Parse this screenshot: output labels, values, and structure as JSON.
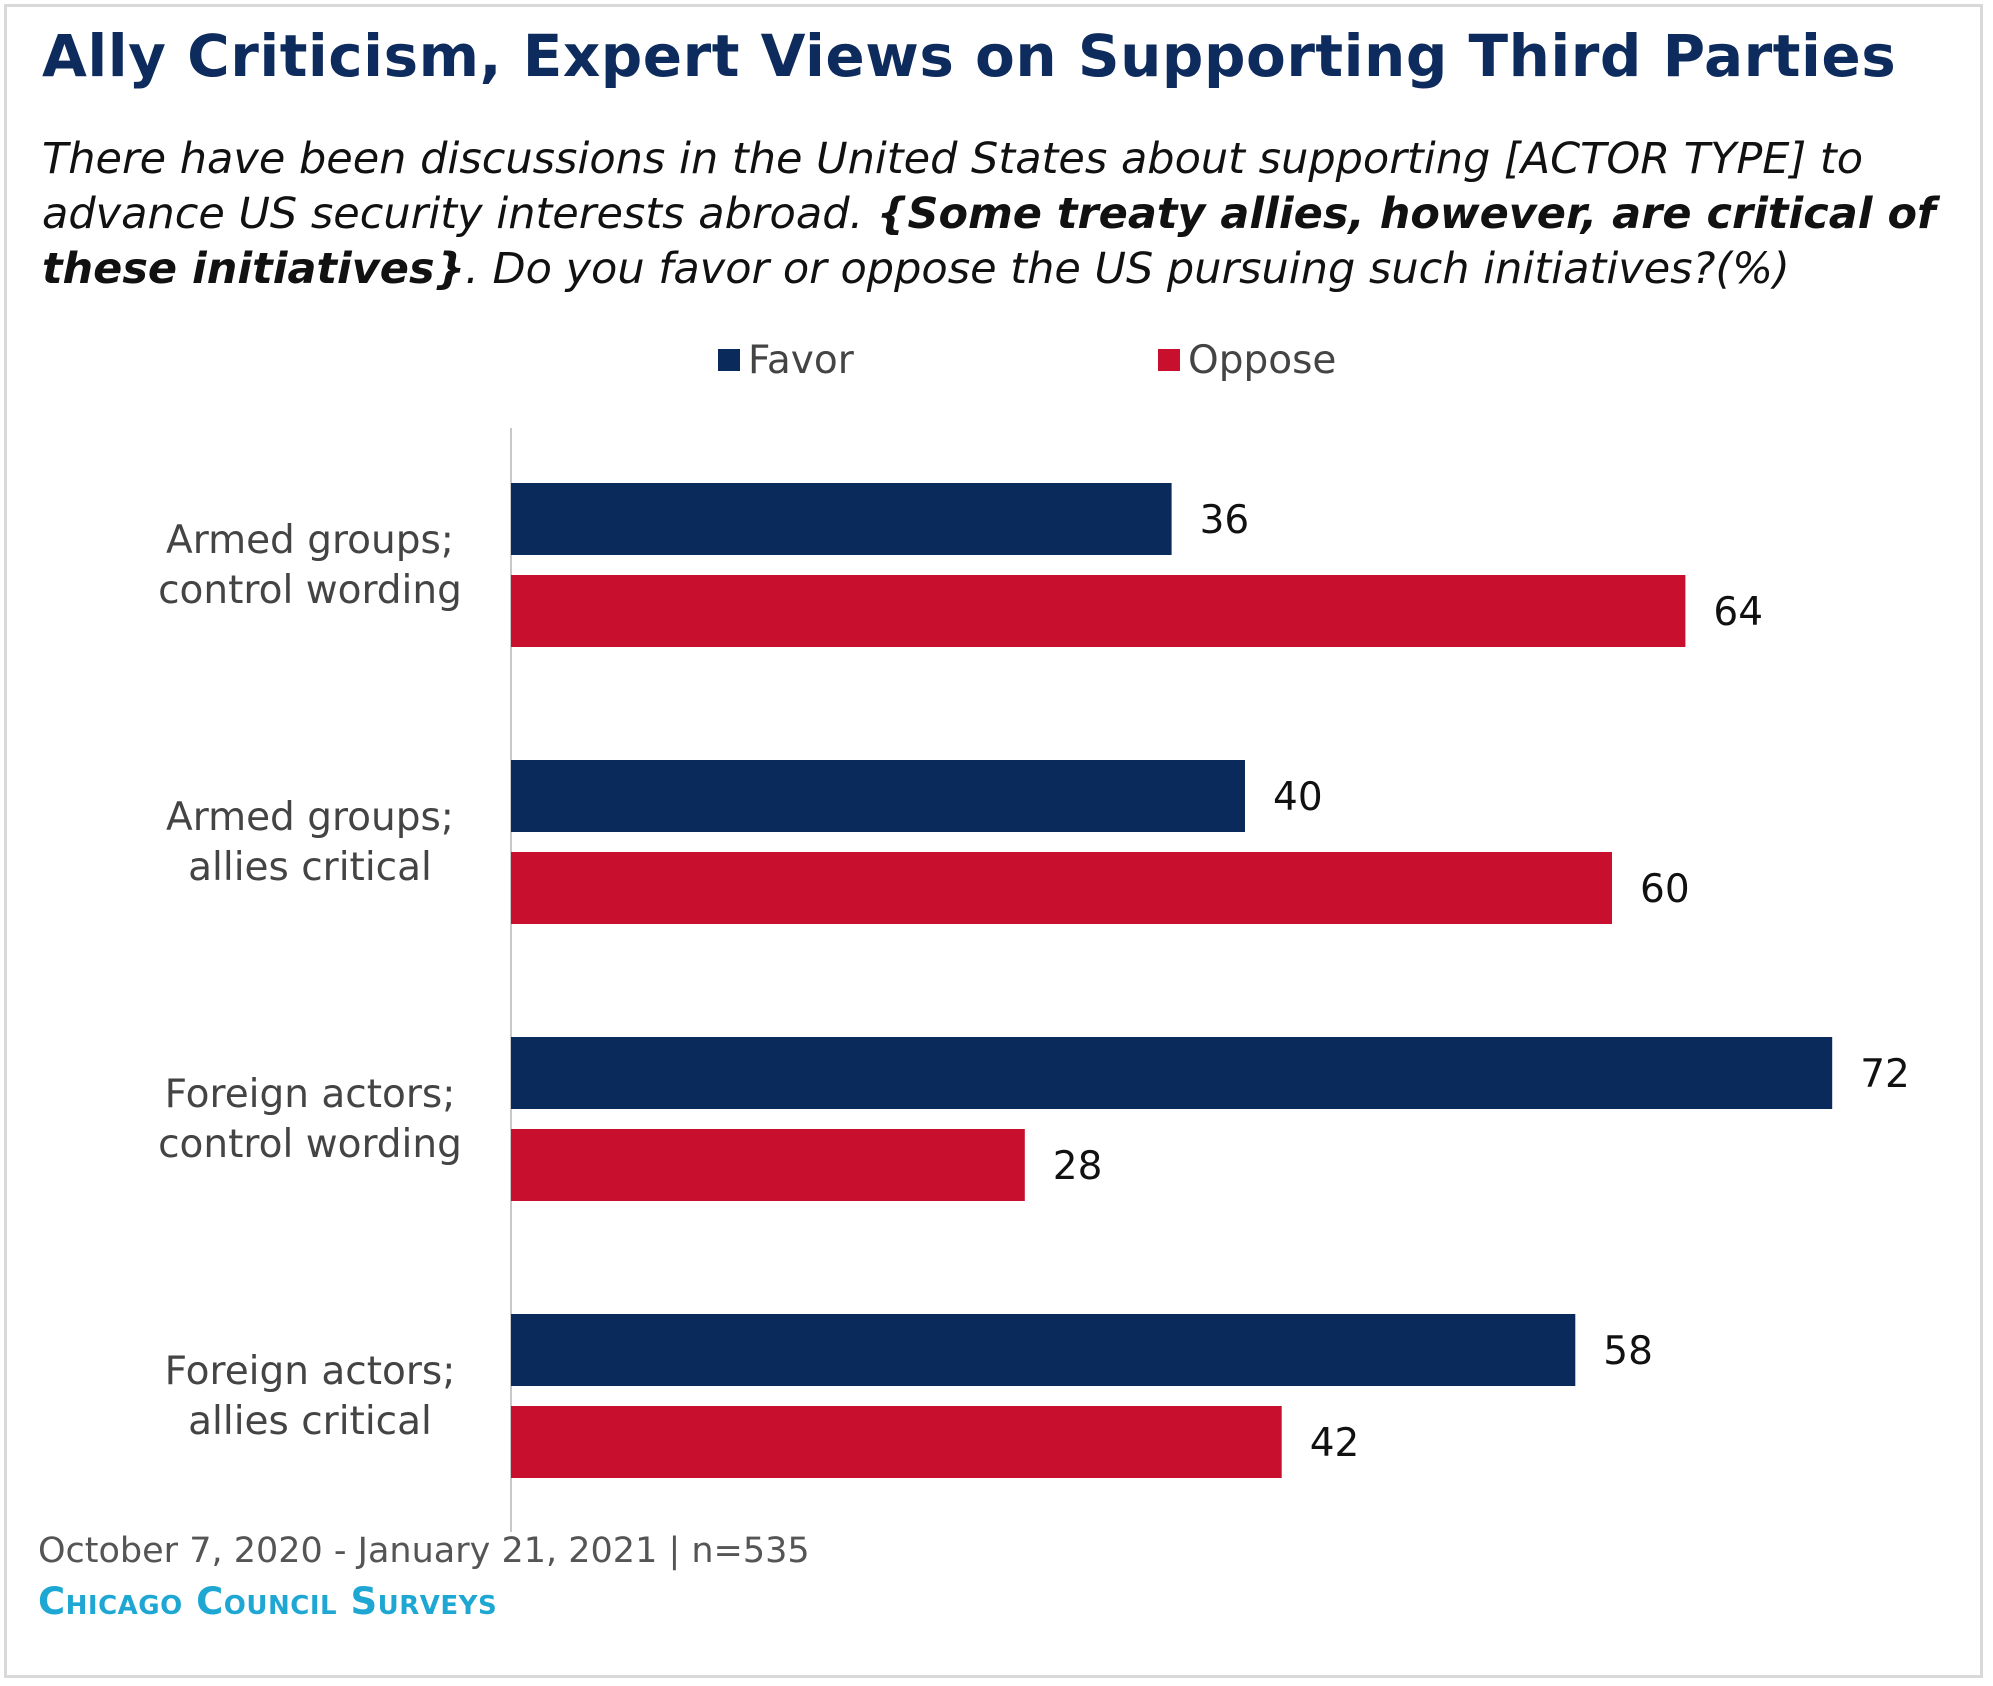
{
  "chart_data": {
    "type": "bar",
    "orientation": "horizontal",
    "title": "Ally Criticism, Expert Views on Supporting Third Parties",
    "subtitle_parts": {
      "part1": "There have been discussions in the United States about supporting [ACTOR TYPE] to advance US security interests abroad. ",
      "part2_bold": "{Some treaty allies, however, are critical of these initiatives}",
      "part3": ". Do you favor or oppose the US pursuing such initiatives?(%)"
    },
    "categories": [
      [
        "Armed groups;",
        "control wording"
      ],
      [
        "Armed groups;",
        "allies critical"
      ],
      [
        "Foreign actors;",
        "control wording"
      ],
      [
        "Foreign actors;",
        "allies critical"
      ]
    ],
    "series": [
      {
        "name": "Favor",
        "color": "#0b2a5c",
        "values": [
          36,
          40,
          72,
          58
        ]
      },
      {
        "name": "Oppose",
        "color": "#c8102e",
        "values": [
          64,
          60,
          28,
          42
        ]
      }
    ],
    "xlim": [
      0,
      80
    ],
    "grid": false,
    "legend_position": "top"
  },
  "footer": {
    "date_range": "October 7, 2020 - January 21, 2021 | n=535",
    "source": "Chicago Council Surveys"
  }
}
